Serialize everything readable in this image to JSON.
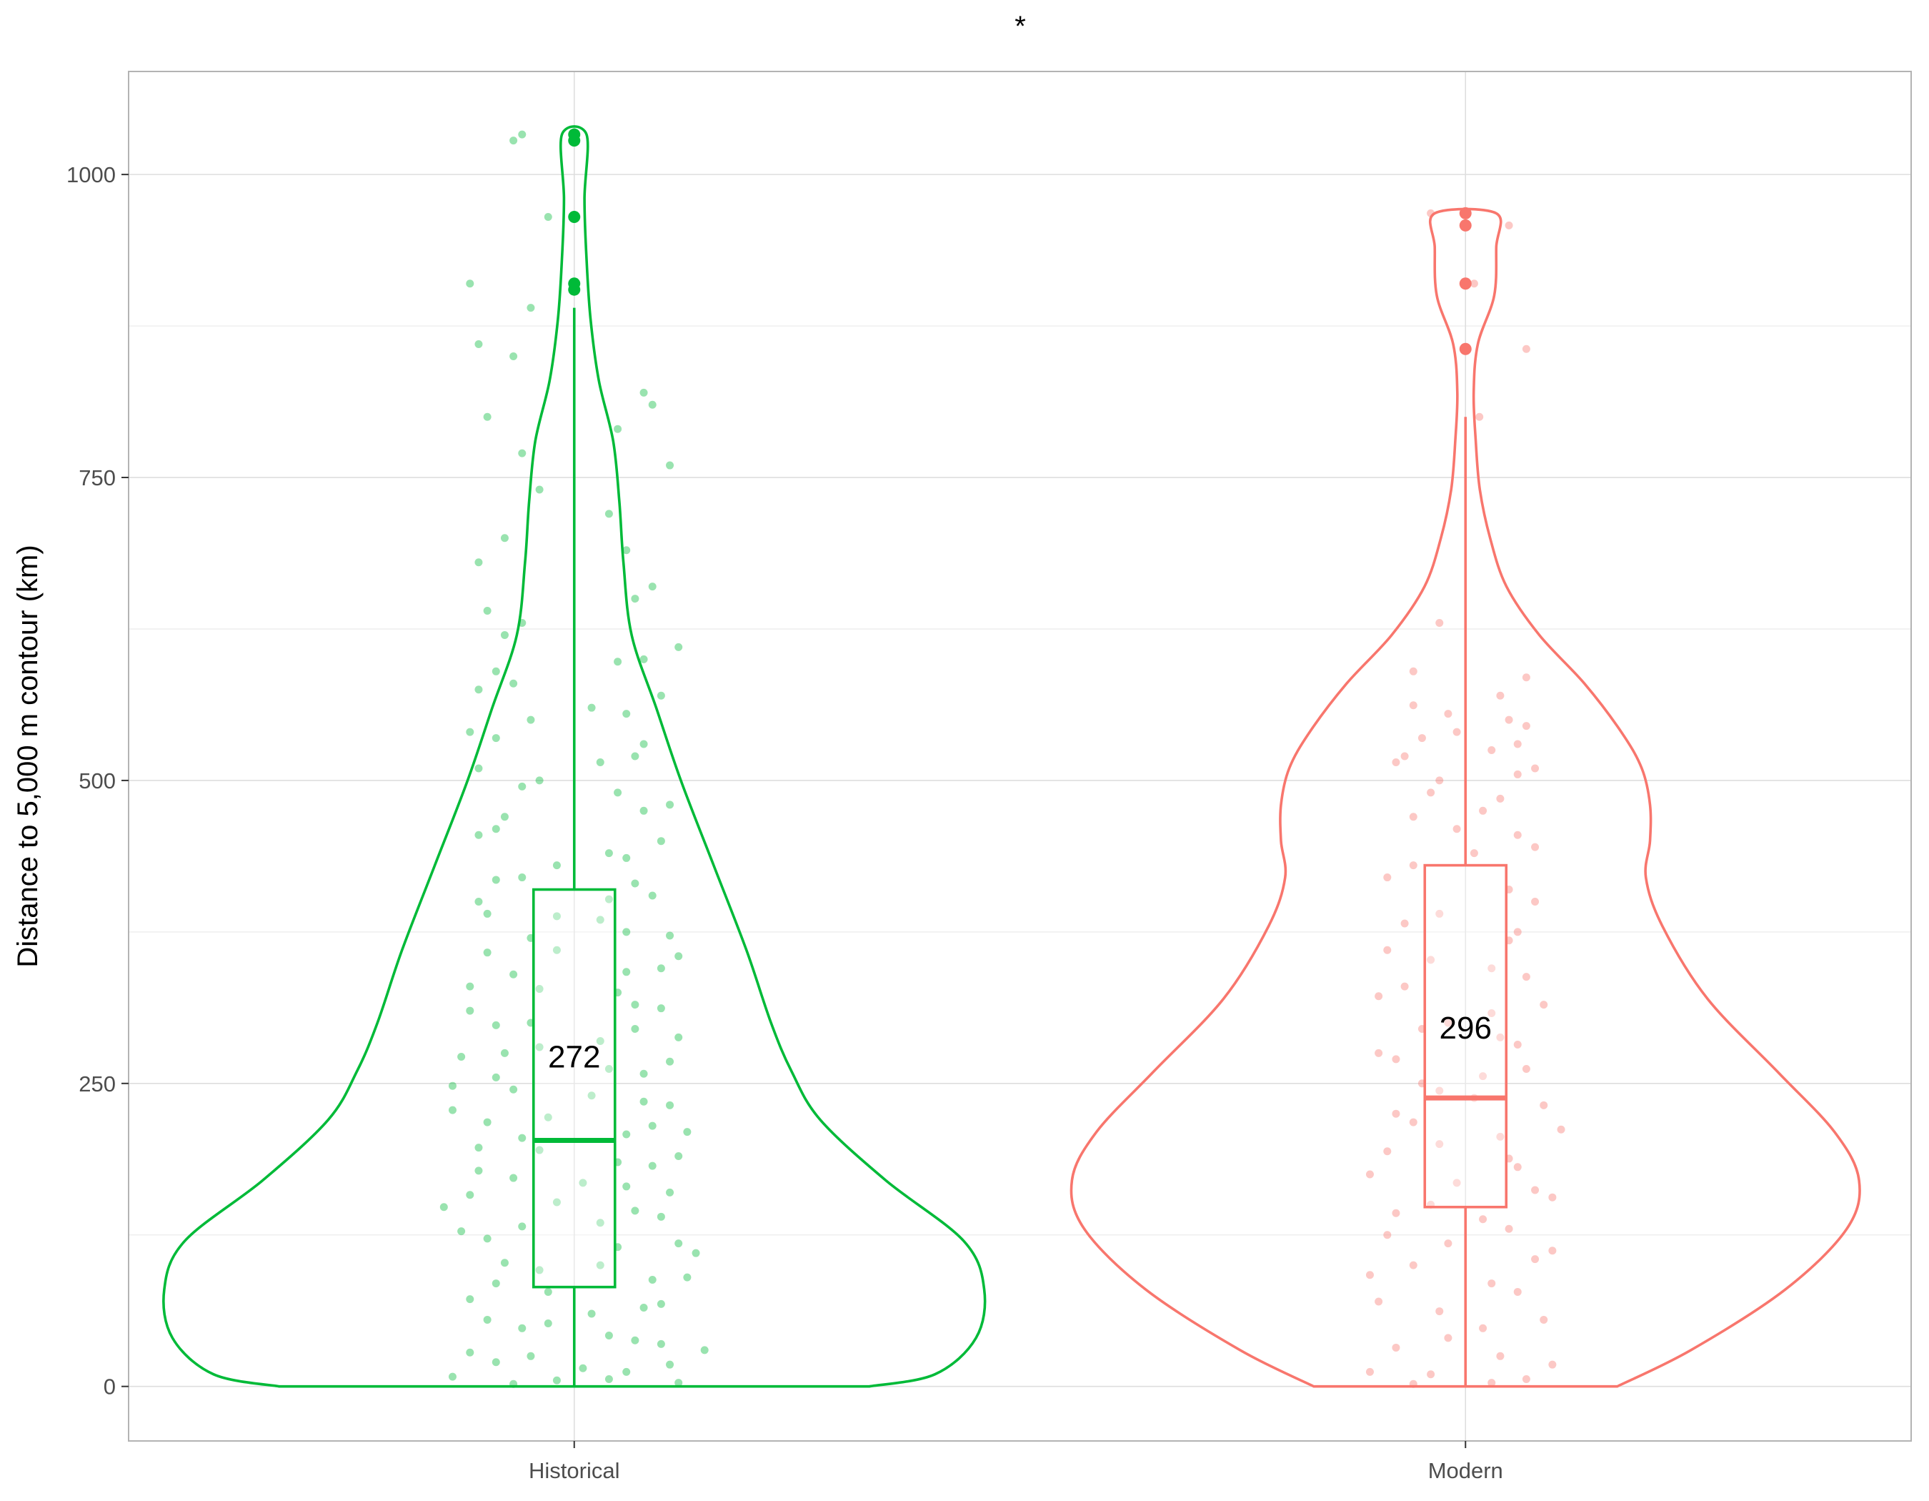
{
  "chart_data": {
    "type": "violin",
    "title": "",
    "significance_label": "*",
    "xlabel": "",
    "ylabel": "Distance to 5,000 m contour (km)",
    "ylim": [
      -45,
      1085
    ],
    "y_ticks": [
      0,
      250,
      500,
      750,
      1000
    ],
    "y_tick_labels": [
      "0",
      "250",
      "500",
      "750",
      "1000"
    ],
    "grid": true,
    "legend": "none",
    "categories": [
      "Historical",
      "Modern"
    ],
    "groups": [
      {
        "name": "Historical",
        "color": "#00ba38",
        "box": {
          "min": 0,
          "q1": 82,
          "median": 203,
          "q3": 410,
          "whisker_high": 890
        },
        "outliers": [
          905,
          910,
          965,
          1028,
          1033
        ],
        "annotation": "272",
        "annotation_y": 272,
        "violin_profile": [
          [
            0,
            0.72
          ],
          [
            10,
            0.88
          ],
          [
            40,
            0.98
          ],
          [
            80,
            1.0
          ],
          [
            120,
            0.95
          ],
          [
            170,
            0.76
          ],
          [
            220,
            0.6
          ],
          [
            260,
            0.53
          ],
          [
            300,
            0.48
          ],
          [
            360,
            0.42
          ],
          [
            430,
            0.34
          ],
          [
            500,
            0.26
          ],
          [
            560,
            0.2
          ],
          [
            620,
            0.14
          ],
          [
            680,
            0.12
          ],
          [
            730,
            0.11
          ],
          [
            780,
            0.095
          ],
          [
            830,
            0.06
          ],
          [
            880,
            0.04
          ],
          [
            930,
            0.03
          ],
          [
            980,
            0.025
          ],
          [
            1033,
            0.03
          ]
        ],
        "points": [
          [
            5,
            -0.1
          ],
          [
            12,
            0.3
          ],
          [
            20,
            -0.45
          ],
          [
            35,
            0.5
          ],
          [
            48,
            -0.3
          ],
          [
            60,
            0.1
          ],
          [
            72,
            -0.6
          ],
          [
            88,
            0.45
          ],
          [
            96,
            -0.2
          ],
          [
            110,
            0.7
          ],
          [
            122,
            -0.5
          ],
          [
            135,
            0.15
          ],
          [
            148,
            -0.75
          ],
          [
            160,
            0.55
          ],
          [
            172,
            -0.35
          ],
          [
            185,
            0.25
          ],
          [
            197,
            -0.55
          ],
          [
            210,
            0.65
          ],
          [
            222,
            -0.15
          ],
          [
            235,
            0.4
          ],
          [
            248,
            -0.7
          ],
          [
            262,
            0.2
          ],
          [
            275,
            -0.4
          ],
          [
            288,
            0.6
          ],
          [
            300,
            -0.25
          ],
          [
            315,
            0.35
          ],
          [
            330,
            -0.6
          ],
          [
            345,
            0.5
          ],
          [
            360,
            -0.1
          ],
          [
            375,
            0.3
          ],
          [
            390,
            -0.5
          ],
          [
            405,
            0.45
          ],
          [
            420,
            -0.3
          ],
          [
            440,
            0.2
          ],
          [
            460,
            -0.45
          ],
          [
            480,
            0.55
          ],
          [
            500,
            -0.2
          ],
          [
            520,
            0.35
          ],
          [
            540,
            -0.6
          ],
          [
            560,
            0.1
          ],
          [
            580,
            -0.35
          ],
          [
            600,
            0.4
          ],
          [
            640,
            -0.5
          ],
          [
            690,
            0.3
          ],
          [
            740,
            -0.2
          ],
          [
            790,
            0.25
          ],
          [
            850,
            -0.35
          ],
          [
            910,
            -0.6
          ],
          [
            965,
            -0.15
          ],
          [
            1028,
            -0.35
          ],
          [
            1033,
            -0.3
          ],
          [
            3,
            0.6
          ],
          [
            8,
            -0.7
          ],
          [
            15,
            0.05
          ],
          [
            25,
            -0.25
          ],
          [
            30,
            0.75
          ],
          [
            42,
            0.2
          ],
          [
            55,
            -0.5
          ],
          [
            65,
            0.4
          ],
          [
            78,
            -0.15
          ],
          [
            90,
            0.65
          ],
          [
            102,
            -0.4
          ],
          [
            115,
            0.25
          ],
          [
            128,
            -0.65
          ],
          [
            140,
            0.5
          ],
          [
            152,
            -0.1
          ],
          [
            165,
            0.3
          ],
          [
            178,
            -0.55
          ],
          [
            190,
            0.6
          ],
          [
            205,
            -0.3
          ],
          [
            215,
            0.45
          ],
          [
            228,
            -0.7
          ],
          [
            240,
            0.1
          ],
          [
            255,
            -0.45
          ],
          [
            268,
            0.55
          ],
          [
            280,
            -0.2
          ],
          [
            295,
            0.35
          ],
          [
            310,
            -0.6
          ],
          [
            325,
            0.25
          ],
          [
            340,
            -0.35
          ],
          [
            355,
            0.6
          ],
          [
            370,
            -0.25
          ],
          [
            385,
            0.15
          ],
          [
            400,
            -0.55
          ],
          [
            415,
            0.35
          ],
          [
            430,
            -0.1
          ],
          [
            450,
            0.5
          ],
          [
            470,
            -0.4
          ],
          [
            490,
            0.25
          ],
          [
            510,
            -0.55
          ],
          [
            530,
            0.4
          ],
          [
            550,
            -0.25
          ],
          [
            570,
            0.5
          ],
          [
            590,
            -0.45
          ],
          [
            610,
            0.6
          ],
          [
            630,
            -0.3
          ],
          [
            660,
            0.45
          ],
          [
            700,
            -0.4
          ],
          [
            760,
            0.55
          ],
          [
            800,
            -0.5
          ],
          [
            820,
            0.4
          ],
          [
            2,
            -0.35
          ],
          [
            6,
            0.2
          ],
          [
            18,
            0.55
          ],
          [
            28,
            -0.6
          ],
          [
            38,
            0.35
          ],
          [
            52,
            -0.15
          ],
          [
            68,
            0.5
          ],
          [
            85,
            -0.45
          ],
          [
            100,
            0.15
          ],
          [
            118,
            0.6
          ],
          [
            132,
            -0.3
          ],
          [
            145,
            0.35
          ],
          [
            158,
            -0.6
          ],
          [
            168,
            0.05
          ],
          [
            182,
            0.45
          ],
          [
            195,
            -0.2
          ],
          [
            208,
            0.3
          ],
          [
            218,
            -0.5
          ],
          [
            232,
            0.55
          ],
          [
            245,
            -0.35
          ],
          [
            258,
            0.4
          ],
          [
            272,
            -0.65
          ],
          [
            285,
            0.15
          ],
          [
            298,
            -0.45
          ],
          [
            312,
            0.5
          ],
          [
            328,
            -0.2
          ],
          [
            342,
            0.3
          ],
          [
            358,
            -0.5
          ],
          [
            372,
            0.55
          ],
          [
            388,
            -0.1
          ],
          [
            402,
            0.2
          ],
          [
            418,
            -0.45
          ],
          [
            436,
            0.3
          ],
          [
            455,
            -0.55
          ],
          [
            475,
            0.4
          ],
          [
            495,
            -0.3
          ],
          [
            515,
            0.15
          ],
          [
            535,
            -0.45
          ],
          [
            555,
            0.3
          ],
          [
            575,
            -0.55
          ],
          [
            598,
            0.25
          ],
          [
            620,
            -0.4
          ],
          [
            650,
            0.35
          ],
          [
            680,
            -0.55
          ],
          [
            720,
            0.2
          ],
          [
            770,
            -0.3
          ],
          [
            810,
            0.45
          ],
          [
            860,
            -0.55
          ],
          [
            890,
            -0.25
          ]
        ]
      },
      {
        "name": "Modern",
        "color": "#f8766d",
        "box": {
          "min": 0,
          "q1": 148,
          "median": 238,
          "q3": 430,
          "whisker_high": 800
        },
        "outliers": [
          856,
          910,
          958,
          968
        ],
        "annotation": "296",
        "annotation_y": 296,
        "violin_profile": [
          [
            0,
            0.37
          ],
          [
            30,
            0.55
          ],
          [
            80,
            0.78
          ],
          [
            130,
            0.93
          ],
          [
            170,
            0.96
          ],
          [
            210,
            0.9
          ],
          [
            260,
            0.76
          ],
          [
            320,
            0.59
          ],
          [
            380,
            0.48
          ],
          [
            420,
            0.44
          ],
          [
            450,
            0.45
          ],
          [
            480,
            0.45
          ],
          [
            510,
            0.43
          ],
          [
            540,
            0.38
          ],
          [
            580,
            0.29
          ],
          [
            620,
            0.18
          ],
          [
            660,
            0.1
          ],
          [
            700,
            0.06
          ],
          [
            740,
            0.035
          ],
          [
            780,
            0.025
          ],
          [
            820,
            0.02
          ],
          [
            860,
            0.03
          ],
          [
            900,
            0.07
          ],
          [
            940,
            0.075
          ],
          [
            968,
            0.075
          ]
        ],
        "points": [
          [
            2,
            -0.3
          ],
          [
            6,
            0.35
          ],
          [
            12,
            -0.55
          ],
          [
            25,
            0.2
          ],
          [
            40,
            -0.1
          ],
          [
            55,
            0.45
          ],
          [
            70,
            -0.5
          ],
          [
            85,
            0.15
          ],
          [
            100,
            -0.3
          ],
          [
            112,
            0.5
          ],
          [
            125,
            -0.45
          ],
          [
            138,
            0.1
          ],
          [
            150,
            -0.2
          ],
          [
            162,
            0.4
          ],
          [
            175,
            -0.55
          ],
          [
            188,
            0.25
          ],
          [
            200,
            -0.15
          ],
          [
            212,
            0.55
          ],
          [
            225,
            -0.4
          ],
          [
            238,
            0.05
          ],
          [
            250,
            -0.25
          ],
          [
            262,
            0.35
          ],
          [
            275,
            -0.5
          ],
          [
            288,
            0.2
          ],
          [
            300,
            -0.1
          ],
          [
            315,
            0.45
          ],
          [
            330,
            -0.35
          ],
          [
            345,
            0.15
          ],
          [
            360,
            -0.45
          ],
          [
            375,
            0.3
          ],
          [
            390,
            -0.15
          ],
          [
            410,
            0.25
          ],
          [
            430,
            -0.3
          ],
          [
            445,
            0.4
          ],
          [
            460,
            -0.05
          ],
          [
            475,
            0.1
          ],
          [
            490,
            -0.2
          ],
          [
            505,
            0.3
          ],
          [
            515,
            -0.4
          ],
          [
            525,
            0.15
          ],
          [
            535,
            -0.25
          ],
          [
            545,
            0.35
          ],
          [
            555,
            -0.1
          ],
          [
            570,
            0.2
          ],
          [
            590,
            -0.3
          ],
          [
            630,
            -0.15
          ],
          [
            800,
            0.08
          ],
          [
            856,
            0.35
          ],
          [
            910,
            0.05
          ],
          [
            968,
            -0.2
          ],
          [
            958,
            0.25
          ],
          [
            3,
            0.15
          ],
          [
            10,
            -0.2
          ],
          [
            18,
            0.5
          ],
          [
            32,
            -0.4
          ],
          [
            48,
            0.1
          ],
          [
            62,
            -0.15
          ],
          [
            78,
            0.3
          ],
          [
            92,
            -0.55
          ],
          [
            105,
            0.4
          ],
          [
            118,
            -0.1
          ],
          [
            130,
            0.25
          ],
          [
            143,
            -0.4
          ],
          [
            156,
            0.5
          ],
          [
            168,
            -0.05
          ],
          [
            181,
            0.3
          ],
          [
            194,
            -0.45
          ],
          [
            206,
            0.2
          ],
          [
            218,
            -0.3
          ],
          [
            232,
            0.45
          ],
          [
            244,
            -0.15
          ],
          [
            256,
            0.1
          ],
          [
            270,
            -0.4
          ],
          [
            282,
            0.3
          ],
          [
            295,
            -0.25
          ],
          [
            308,
            0.15
          ],
          [
            322,
            -0.5
          ],
          [
            338,
            0.35
          ],
          [
            352,
            -0.2
          ],
          [
            368,
            0.25
          ],
          [
            382,
            -0.35
          ],
          [
            400,
            0.4
          ],
          [
            420,
            -0.45
          ],
          [
            440,
            0.05
          ],
          [
            455,
            0.3
          ],
          [
            470,
            -0.3
          ],
          [
            485,
            0.2
          ],
          [
            500,
            -0.15
          ],
          [
            510,
            0.4
          ],
          [
            520,
            -0.35
          ],
          [
            530,
            0.3
          ],
          [
            540,
            -0.05
          ],
          [
            550,
            0.25
          ],
          [
            562,
            -0.3
          ],
          [
            585,
            0.35
          ]
        ]
      }
    ]
  }
}
